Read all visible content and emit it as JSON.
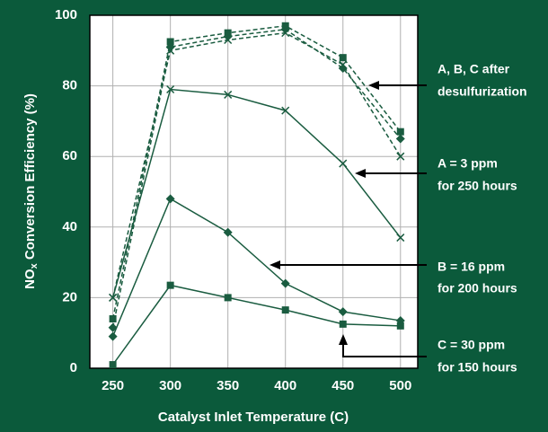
{
  "chart_data": {
    "type": "line",
    "xlabel": "Catalyst Inlet Temperature (C)",
    "ylabel_parts": [
      "NO",
      "x",
      " Conversion Efficiency (%)"
    ],
    "x": [
      250,
      300,
      350,
      400,
      450,
      500
    ],
    "xlim": [
      230,
      515
    ],
    "xticks": [
      250,
      300,
      350,
      400,
      450,
      500
    ],
    "ylim": [
      0,
      100
    ],
    "yticks": [
      0,
      20,
      40,
      60,
      80,
      100
    ],
    "grid": true,
    "series": [
      {
        "color": "#1a5c40",
        "marker": "x",
        "dashed": true,
        "values": [
          20,
          90,
          93,
          95,
          86,
          60
        ]
      },
      {
        "color": "#1a5c40",
        "marker": "diamond",
        "dashed": true,
        "values": [
          11.5,
          91,
          94,
          96,
          85,
          65
        ]
      },
      {
        "color": "#1a5c40",
        "marker": "square",
        "dashed": true,
        "values": [
          14,
          92.5,
          95,
          97,
          88,
          67
        ]
      },
      {
        "color": "#1a5c40",
        "marker": "x",
        "dashed": false,
        "values": [
          20,
          79,
          77.5,
          73,
          58,
          37
        ]
      },
      {
        "color": "#1a5c40",
        "marker": "diamond",
        "dashed": false,
        "values": [
          9,
          48,
          38.5,
          24,
          16,
          13.5
        ]
      },
      {
        "color": "#1a5c40",
        "marker": "square",
        "dashed": false,
        "values": [
          1,
          23.5,
          20,
          16.5,
          12.5,
          12
        ]
      }
    ],
    "annotations": [
      {
        "lines": [
          "A, B, C after",
          "desulfurization"
        ]
      },
      {
        "lines": [
          "A = 3 ppm",
          "for 250 hours"
        ]
      },
      {
        "lines": [
          "B = 16 ppm",
          "for 200 hours"
        ]
      },
      {
        "lines": [
          "C = 30 ppm",
          "for 150 hours"
        ]
      }
    ]
  }
}
